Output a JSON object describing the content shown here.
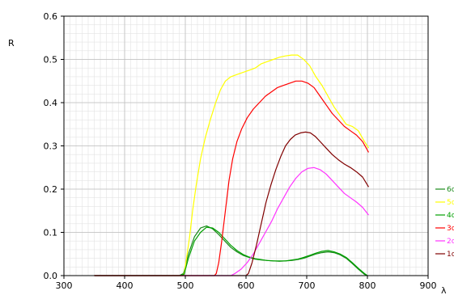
{
  "chart_data": {
    "type": "line",
    "title": "",
    "xlabel": "λ",
    "ylabel": "R",
    "xlim": [
      300,
      900
    ],
    "ylim": [
      0,
      0.6
    ],
    "x_ticks": [
      300,
      400,
      500,
      600,
      700,
      800,
      900
    ],
    "y_ticks": [
      0.0,
      0.1,
      0.2,
      0.3,
      0.4,
      0.5,
      0.6
    ],
    "y_tick_labels": [
      "0.0",
      "0.1",
      "0.2",
      "0.3",
      "0.4",
      "0.5",
      "0.6"
    ],
    "grid": true,
    "legend_position": "right",
    "series": [
      {
        "name": "6c",
        "color": "#1a8a1a",
        "points": [
          [
            350,
            0
          ],
          [
            490,
            0
          ],
          [
            497,
            0.005
          ],
          [
            505,
            0.05
          ],
          [
            515,
            0.09
          ],
          [
            525,
            0.11
          ],
          [
            535,
            0.115
          ],
          [
            545,
            0.108
          ],
          [
            555,
            0.095
          ],
          [
            565,
            0.08
          ],
          [
            575,
            0.065
          ],
          [
            585,
            0.055
          ],
          [
            595,
            0.047
          ],
          [
            605,
            0.042
          ],
          [
            615,
            0.038
          ],
          [
            625,
            0.036
          ],
          [
            635,
            0.035
          ],
          [
            645,
            0.034
          ],
          [
            655,
            0.033
          ],
          [
            665,
            0.034
          ],
          [
            675,
            0.035
          ],
          [
            685,
            0.037
          ],
          [
            695,
            0.04
          ],
          [
            705,
            0.045
          ],
          [
            715,
            0.05
          ],
          [
            725,
            0.053
          ],
          [
            735,
            0.055
          ],
          [
            745,
            0.053
          ],
          [
            755,
            0.048
          ],
          [
            765,
            0.04
          ],
          [
            775,
            0.028
          ],
          [
            785,
            0.015
          ],
          [
            795,
            0.003
          ],
          [
            800,
            0
          ]
        ]
      },
      {
        "name": "5c",
        "color": "#ffff00",
        "points": [
          [
            350,
            0
          ],
          [
            495,
            0
          ],
          [
            498,
            0.005
          ],
          [
            502,
            0.04
          ],
          [
            507,
            0.09
          ],
          [
            512,
            0.15
          ],
          [
            518,
            0.21
          ],
          [
            525,
            0.27
          ],
          [
            533,
            0.32
          ],
          [
            541,
            0.36
          ],
          [
            550,
            0.4
          ],
          [
            558,
            0.43
          ],
          [
            566,
            0.45
          ],
          [
            575,
            0.46
          ],
          [
            585,
            0.465
          ],
          [
            595,
            0.47
          ],
          [
            605,
            0.475
          ],
          [
            615,
            0.48
          ],
          [
            625,
            0.49
          ],
          [
            635,
            0.495
          ],
          [
            645,
            0.5
          ],
          [
            655,
            0.505
          ],
          [
            665,
            0.508
          ],
          [
            675,
            0.51
          ],
          [
            685,
            0.51
          ],
          [
            690,
            0.505
          ],
          [
            695,
            0.5
          ],
          [
            705,
            0.485
          ],
          [
            715,
            0.46
          ],
          [
            725,
            0.44
          ],
          [
            735,
            0.415
          ],
          [
            745,
            0.39
          ],
          [
            755,
            0.37
          ],
          [
            765,
            0.35
          ],
          [
            775,
            0.345
          ],
          [
            785,
            0.335
          ],
          [
            795,
            0.31
          ],
          [
            802,
            0.295
          ]
        ]
      },
      {
        "name": "4c",
        "color": "#00a000",
        "points": [
          [
            350,
            0
          ],
          [
            492,
            0
          ],
          [
            498,
            0.003
          ],
          [
            505,
            0.04
          ],
          [
            515,
            0.08
          ],
          [
            525,
            0.1
          ],
          [
            535,
            0.112
          ],
          [
            545,
            0.11
          ],
          [
            555,
            0.1
          ],
          [
            565,
            0.085
          ],
          [
            575,
            0.07
          ],
          [
            585,
            0.058
          ],
          [
            595,
            0.049
          ],
          [
            605,
            0.043
          ],
          [
            615,
            0.039
          ],
          [
            625,
            0.037
          ],
          [
            635,
            0.035
          ],
          [
            645,
            0.034
          ],
          [
            655,
            0.034
          ],
          [
            665,
            0.034
          ],
          [
            675,
            0.036
          ],
          [
            685,
            0.038
          ],
          [
            695,
            0.042
          ],
          [
            705,
            0.047
          ],
          [
            715,
            0.052
          ],
          [
            725,
            0.056
          ],
          [
            735,
            0.058
          ],
          [
            745,
            0.055
          ],
          [
            755,
            0.05
          ],
          [
            765,
            0.042
          ],
          [
            775,
            0.03
          ],
          [
            785,
            0.017
          ],
          [
            795,
            0.005
          ],
          [
            800,
            0
          ]
        ]
      },
      {
        "name": "3c",
        "color": "#ff0000",
        "points": [
          [
            350,
            0
          ],
          [
            548,
            0
          ],
          [
            551,
            0.005
          ],
          [
            555,
            0.03
          ],
          [
            560,
            0.08
          ],
          [
            566,
            0.15
          ],
          [
            572,
            0.22
          ],
          [
            578,
            0.27
          ],
          [
            585,
            0.31
          ],
          [
            593,
            0.34
          ],
          [
            602,
            0.365
          ],
          [
            612,
            0.385
          ],
          [
            622,
            0.4
          ],
          [
            632,
            0.415
          ],
          [
            642,
            0.425
          ],
          [
            652,
            0.435
          ],
          [
            662,
            0.44
          ],
          [
            672,
            0.445
          ],
          [
            682,
            0.45
          ],
          [
            692,
            0.45
          ],
          [
            702,
            0.445
          ],
          [
            712,
            0.435
          ],
          [
            722,
            0.415
          ],
          [
            732,
            0.395
          ],
          [
            742,
            0.375
          ],
          [
            752,
            0.36
          ],
          [
            762,
            0.345
          ],
          [
            772,
            0.335
          ],
          [
            782,
            0.325
          ],
          [
            792,
            0.31
          ],
          [
            802,
            0.285
          ]
        ]
      },
      {
        "name": "2c",
        "color": "#ff33ff",
        "points": [
          [
            350,
            0
          ],
          [
            575,
            0
          ],
          [
            582,
            0.005
          ],
          [
            592,
            0.015
          ],
          [
            602,
            0.03
          ],
          [
            612,
            0.05
          ],
          [
            622,
            0.075
          ],
          [
            632,
            0.1
          ],
          [
            642,
            0.125
          ],
          [
            652,
            0.155
          ],
          [
            662,
            0.18
          ],
          [
            672,
            0.205
          ],
          [
            682,
            0.225
          ],
          [
            692,
            0.24
          ],
          [
            702,
            0.248
          ],
          [
            712,
            0.25
          ],
          [
            722,
            0.245
          ],
          [
            732,
            0.235
          ],
          [
            742,
            0.22
          ],
          [
            752,
            0.205
          ],
          [
            762,
            0.19
          ],
          [
            772,
            0.18
          ],
          [
            782,
            0.17
          ],
          [
            792,
            0.158
          ],
          [
            802,
            0.14
          ]
        ]
      },
      {
        "name": "1c",
        "color": "#800000",
        "points": [
          [
            350,
            0
          ],
          [
            600,
            0
          ],
          [
            604,
            0.005
          ],
          [
            610,
            0.03
          ],
          [
            617,
            0.07
          ],
          [
            625,
            0.12
          ],
          [
            633,
            0.17
          ],
          [
            641,
            0.21
          ],
          [
            649,
            0.245
          ],
          [
            657,
            0.275
          ],
          [
            665,
            0.3
          ],
          [
            673,
            0.315
          ],
          [
            681,
            0.325
          ],
          [
            690,
            0.33
          ],
          [
            698,
            0.332
          ],
          [
            706,
            0.33
          ],
          [
            714,
            0.322
          ],
          [
            722,
            0.31
          ],
          [
            732,
            0.295
          ],
          [
            742,
            0.28
          ],
          [
            752,
            0.268
          ],
          [
            762,
            0.258
          ],
          [
            772,
            0.25
          ],
          [
            782,
            0.24
          ],
          [
            792,
            0.228
          ],
          [
            802,
            0.205
          ]
        ]
      }
    ]
  }
}
